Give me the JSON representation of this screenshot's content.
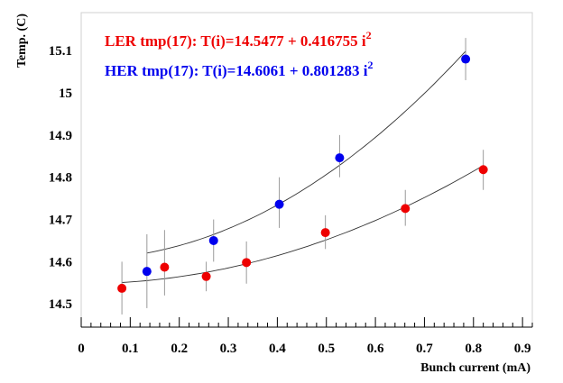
{
  "chart_data": {
    "type": "scatter",
    "title": "",
    "xlabel": "Bunch current (mA)",
    "ylabel": "Temp. (C)",
    "xlim": [
      0,
      0.92
    ],
    "ylim": [
      14.445,
      15.19
    ],
    "xticks": [
      "0",
      "0.1",
      "0.2",
      "0.3",
      "0.4",
      "0.5",
      "0.6",
      "0.7",
      "0.8",
      "0.9"
    ],
    "yticks": [
      "14.5",
      "14.6",
      "14.7",
      "14.8",
      "14.9",
      "15",
      "15.1"
    ],
    "grid": false,
    "legend_position": "top-left",
    "series": [
      {
        "name": "LER tmp(17): T(i)=14.5477 + 0.416755 i",
        "name_superscript": "2",
        "color": "#ee0000",
        "x": [
          0.083,
          0.17,
          0.255,
          0.337,
          0.498,
          0.661,
          0.82
        ],
        "y": [
          14.537,
          14.587,
          14.565,
          14.598,
          14.669,
          14.726,
          14.818
        ],
        "err_low": [
          14.475,
          14.52,
          14.53,
          14.548,
          14.63,
          14.685,
          14.77
        ],
        "err_high": [
          14.6,
          14.675,
          14.6,
          14.648,
          14.71,
          14.77,
          14.865
        ],
        "fit": {
          "a": 14.5477,
          "b": 0.416755,
          "x_range": [
            0.083,
            0.82
          ]
        }
      },
      {
        "name": "HER tmp(17): T(i)=14.6061 + 0.801283 i",
        "name_superscript": "2",
        "color": "#0000ee",
        "x": [
          0.134,
          0.27,
          0.404,
          0.527,
          0.784
        ],
        "y": [
          14.577,
          14.65,
          14.736,
          14.846,
          15.08
        ],
        "err_low": [
          14.49,
          14.6,
          14.68,
          14.8,
          15.03
        ],
        "err_high": [
          14.665,
          14.7,
          14.8,
          14.9,
          15.13
        ],
        "fit": {
          "a": 14.6061,
          "b": 0.801283,
          "x_range": [
            0.134,
            0.784
          ]
        }
      }
    ]
  }
}
